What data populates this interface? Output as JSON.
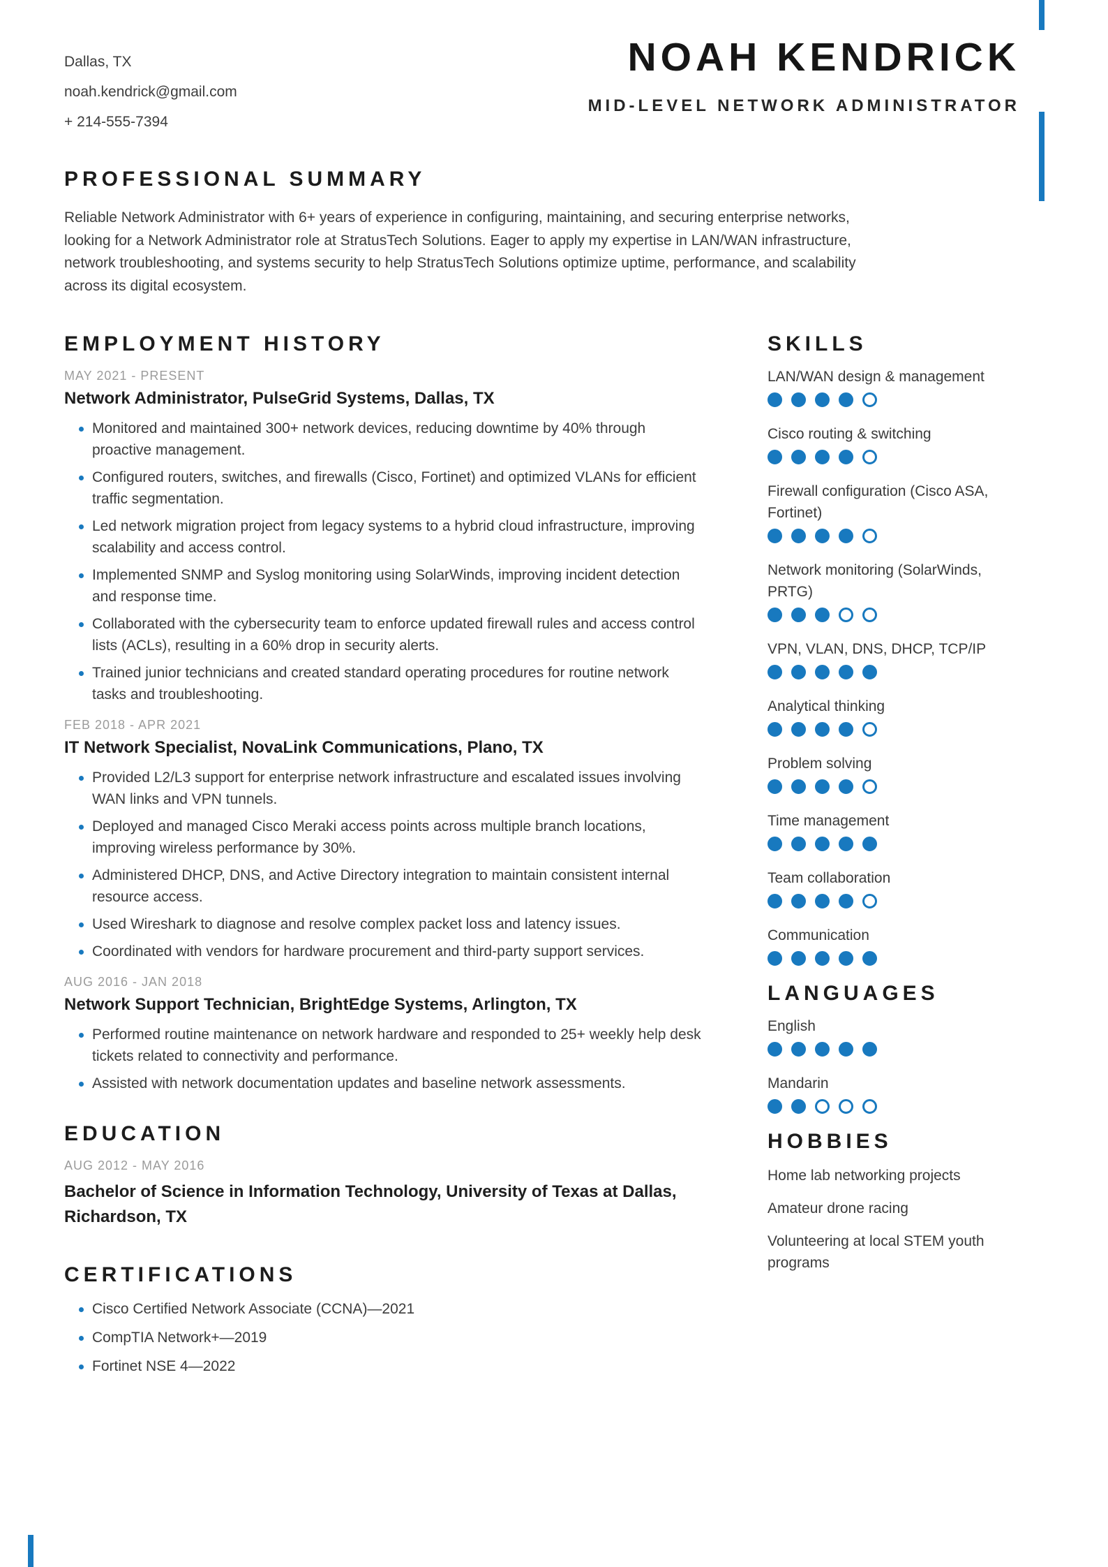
{
  "accent_color": "#1879bf",
  "header": {
    "contact": {
      "location": "Dallas, TX",
      "email": "noah.kendrick@gmail.com",
      "phone": "+ 214-555-7394"
    },
    "name": "NOAH KENDRICK",
    "title": "MID-LEVEL NETWORK ADMINISTRATOR"
  },
  "summary": {
    "heading": "PROFESSIONAL SUMMARY",
    "text": "Reliable Network Administrator with 6+ years of experience in configuring, maintaining, and securing enterprise networks, looking for a Network Administrator role at StratusTech Solutions. Eager to apply my expertise in LAN/WAN infrastructure, network troubleshooting, and systems security to help StratusTech Solutions optimize uptime, performance, and scalability across its digital ecosystem."
  },
  "employment": {
    "heading": "EMPLOYMENT HISTORY",
    "jobs": [
      {
        "dates": "MAY 2021 - PRESENT",
        "title": "Network Administrator, PulseGrid Systems, Dallas, TX",
        "bullets": [
          "Monitored and maintained 300+ network devices, reducing downtime by 40% through proactive management.",
          "Configured routers, switches, and firewalls (Cisco, Fortinet) and optimized VLANs for efficient traffic segmentation.",
          "Led network migration project from legacy systems to a hybrid cloud infrastructure, improving scalability and access control.",
          "Implemented SNMP and Syslog monitoring using SolarWinds, improving incident detection and response time.",
          "Collaborated with the cybersecurity team to enforce updated firewall rules and access control lists (ACLs), resulting in a 60% drop in security alerts.",
          "Trained junior technicians and created standard operating procedures for routine network tasks and troubleshooting."
        ]
      },
      {
        "dates": "FEB 2018 - APR 2021",
        "title": "IT Network Specialist, NovaLink Communications, Plano, TX",
        "bullets": [
          "Provided L2/L3 support for enterprise network infrastructure and escalated issues involving WAN links and VPN tunnels.",
          "Deployed and managed Cisco Meraki access points across multiple branch locations, improving wireless performance by 30%.",
          "Administered DHCP, DNS, and Active Directory integration to maintain consistent internal resource access.",
          "Used Wireshark to diagnose and resolve complex packet loss and latency issues.",
          "Coordinated with vendors for hardware procurement and third-party support services."
        ]
      },
      {
        "dates": "AUG 2016 - JAN 2018",
        "title": "Network Support Technician, BrightEdge Systems, Arlington, TX",
        "bullets": [
          "Performed routine maintenance on network hardware and responded to 25+ weekly help desk tickets related to connectivity and performance.",
          "Assisted with network documentation updates and baseline network assessments."
        ]
      }
    ]
  },
  "education": {
    "heading": "EDUCATION",
    "dates": "AUG 2012 - MAY 2016",
    "degree": "Bachelor of Science in Information Technology, University of Texas at Dallas, Richardson, TX"
  },
  "certifications": {
    "heading": "CERTIFICATIONS",
    "items": [
      "Cisco Certified Network Associate (CCNA)—2021",
      "CompTIA Network+—2019",
      "Fortinet NSE 4—2022"
    ]
  },
  "skills": {
    "heading": "SKILLS",
    "max_level": 5,
    "items": [
      {
        "label": "LAN/WAN design & management",
        "level": 4
      },
      {
        "label": "Cisco routing & switching",
        "level": 4
      },
      {
        "label": "Firewall configuration (Cisco ASA, Fortinet)",
        "level": 4
      },
      {
        "label": "Network monitoring (SolarWinds, PRTG)",
        "level": 3
      },
      {
        "label": "VPN, VLAN, DNS, DHCP, TCP/IP",
        "level": 5
      },
      {
        "label": "Analytical thinking",
        "level": 4
      },
      {
        "label": "Problem solving",
        "level": 4
      },
      {
        "label": "Time management",
        "level": 5
      },
      {
        "label": "Team collaboration",
        "level": 4
      },
      {
        "label": "Communication",
        "level": 5
      }
    ]
  },
  "languages": {
    "heading": "LANGUAGES",
    "items": [
      {
        "label": "English",
        "level": 5
      },
      {
        "label": "Mandarin",
        "level": 2
      }
    ]
  },
  "hobbies": {
    "heading": "HOBBIES",
    "items": [
      "Home lab networking projects",
      "Amateur drone racing",
      "Volunteering at local STEM youth programs"
    ]
  }
}
